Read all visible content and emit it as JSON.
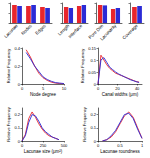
{
  "chart_data": [
    {
      "type": "bar",
      "categories": [
        "Lacunae",
        "Nodes",
        "Edges"
      ],
      "series": [
        {
          "color": "#e8262c",
          "values": [
            0.9,
            0.85,
            0.8
          ]
        },
        {
          "color": "#2b2bd6",
          "values": [
            0.85,
            0.9,
            0.75
          ]
        }
      ],
      "ylim": [
        0,
        1
      ],
      "yticks": [
        0,
        0.5,
        1
      ],
      "tick_labels": "x",
      "grid": false
    },
    {
      "type": "bar",
      "categories": [
        "Length",
        "Interface"
      ],
      "series": [
        {
          "color": "#e8262c",
          "values": [
            0.8,
            0.85
          ]
        },
        {
          "color": "#2b2bd6",
          "values": [
            0.75,
            0.9
          ]
        }
      ],
      "ylim": [
        0,
        1
      ],
      "yticks": [
        0,
        0.5,
        1
      ],
      "tick_labels": "x",
      "grid": false
    },
    {
      "type": "bar",
      "categories": [
        "Pore Dim",
        "Lacunarity"
      ],
      "series": [
        {
          "color": "#e8262c",
          "values": [
            0.9,
            0.7
          ]
        },
        {
          "color": "#2b2bd6",
          "values": [
            0.88,
            0.75
          ]
        }
      ],
      "ylim": [
        0,
        1
      ],
      "yticks": [
        0,
        0.5,
        1
      ],
      "tick_labels": "x",
      "grid": false
    },
    {
      "type": "bar",
      "categories": [
        "Coverage"
      ],
      "series": [
        {
          "color": "#e8262c",
          "values": [
            0.8
          ]
        },
        {
          "color": "#2b2bd6",
          "values": [
            0.85
          ]
        }
      ],
      "ylim": [
        0,
        1
      ],
      "yticks": [
        0,
        0.5,
        1
      ],
      "tick_labels": "x",
      "grid": false
    },
    {
      "type": "line",
      "xlabel": "Node degree",
      "ylabel": "Relative Frequency",
      "x": [
        1,
        2,
        3,
        4,
        5,
        6,
        7,
        8,
        9,
        10
      ],
      "series": [
        {
          "color": "#e8262c",
          "values": [
            0.38,
            0.3,
            0.2,
            0.12,
            0.07,
            0.04,
            0.02,
            0.01,
            0.005,
            0.002
          ]
        },
        {
          "color": "#2b2bd6",
          "values": [
            0.35,
            0.28,
            0.2,
            0.14,
            0.08,
            0.05,
            0.03,
            0.015,
            0.01,
            0.005
          ]
        }
      ],
      "xlim": [
        0,
        10
      ],
      "xticks": [
        0,
        5,
        10
      ],
      "ylim": [
        0,
        0.4
      ],
      "yticks": [
        0,
        0.2,
        0.4
      ],
      "grid": false
    },
    {
      "type": "line",
      "xlabel": "Canal widths (μm)",
      "ylabel": "Relative Frequency",
      "x": [
        0,
        3,
        6,
        9,
        12,
        15,
        18,
        21,
        24,
        27,
        30,
        33,
        36,
        39,
        42
      ],
      "series": [
        {
          "color": "#e8262c",
          "values": [
            0.0,
            0.12,
            0.1,
            0.08,
            0.065,
            0.055,
            0.045,
            0.04,
            0.035,
            0.03,
            0.025,
            0.02,
            0.015,
            0.01,
            0.008
          ]
        },
        {
          "color": "#2b2bd6",
          "values": [
            0.0,
            0.1,
            0.11,
            0.09,
            0.07,
            0.06,
            0.05,
            0.042,
            0.036,
            0.03,
            0.024,
            0.018,
            0.014,
            0.01,
            0.006
          ]
        }
      ],
      "xlim": [
        0,
        45
      ],
      "xticks": [
        0,
        20,
        40
      ],
      "ylim": [
        0,
        0.15
      ],
      "yticks": [
        0,
        0.05,
        0.1,
        0.15
      ],
      "grid": false
    },
    {
      "type": "line",
      "xlabel": "Lacunae size (μm²)",
      "ylabel": "Relative Frequency",
      "x": [
        0,
        40,
        80,
        120,
        160,
        200,
        240,
        280,
        320,
        360,
        400,
        440
      ],
      "series": [
        {
          "color": "#e8262c",
          "values": [
            0.0,
            0.05,
            0.17,
            0.22,
            0.18,
            0.13,
            0.09,
            0.06,
            0.04,
            0.03,
            0.02,
            0.01
          ]
        },
        {
          "color": "#2b2bd6",
          "values": [
            0.0,
            0.04,
            0.14,
            0.2,
            0.19,
            0.15,
            0.1,
            0.07,
            0.05,
            0.03,
            0.02,
            0.01
          ]
        }
      ],
      "xlim": [
        0,
        500
      ],
      "xticks": [
        0,
        250,
        500
      ],
      "ylim": [
        0,
        0.25
      ],
      "yticks": [
        0,
        0.1,
        0.2
      ],
      "grid": false
    },
    {
      "type": "line",
      "xlabel": "Lacunae roundness",
      "ylabel": "Relative Frequency",
      "x": [
        0.1,
        0.2,
        0.3,
        0.4,
        0.5,
        0.6,
        0.7,
        0.8,
        0.9,
        1.0
      ],
      "series": [
        {
          "color": "#e8262c",
          "values": [
            0.0,
            0.01,
            0.03,
            0.07,
            0.13,
            0.19,
            0.22,
            0.18,
            0.1,
            0.02
          ]
        },
        {
          "color": "#2b2bd6",
          "values": [
            0.0,
            0.01,
            0.04,
            0.08,
            0.14,
            0.2,
            0.21,
            0.17,
            0.09,
            0.02
          ]
        }
      ],
      "xlim": [
        0,
        1
      ],
      "xticks": [
        0,
        0.5,
        1
      ],
      "ylim": [
        0,
        0.25
      ],
      "yticks": [
        0,
        0.1,
        0.2
      ],
      "grid": false
    }
  ]
}
